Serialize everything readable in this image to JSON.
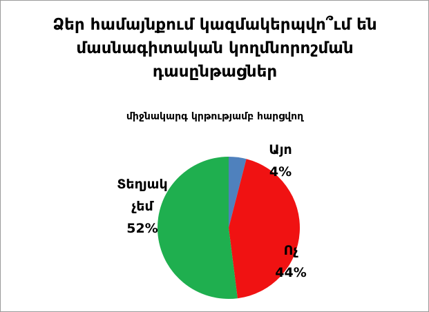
{
  "chart_data": {
    "type": "pie",
    "title": "Ձեր համայնքում կազմակերպվո՞ւմ են մասնագիտական կողմնորոշման դասընթացներ",
    "subtitle": "միջնակարգ կրթությամբ հարցվող",
    "categories": [
      "Այո",
      "Ոչ",
      "Տեղյակ չեմ"
    ],
    "values": [
      4,
      44,
      52
    ],
    "value_labels": [
      "4%",
      "44%",
      "52%"
    ],
    "colors": [
      "#4f81bd",
      "#f01212",
      "#1faf4f"
    ]
  }
}
